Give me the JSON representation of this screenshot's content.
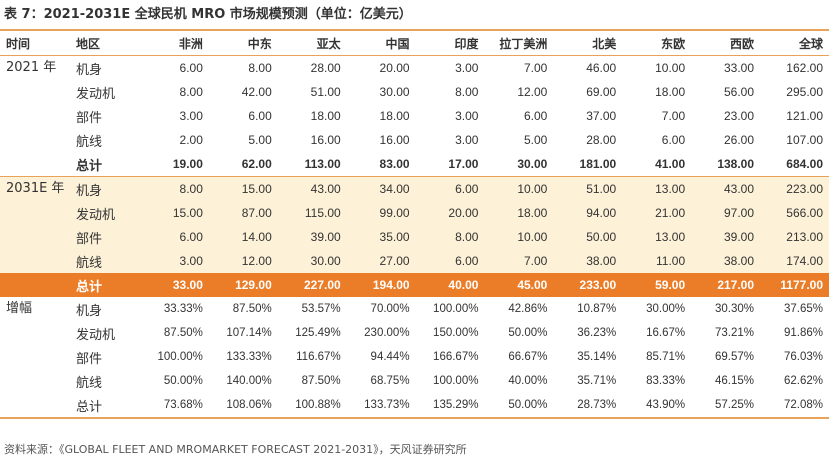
{
  "title": "表 7：2021-2031E 全球民机 MRO 市场规模预测（单位：亿美元）",
  "header": {
    "col_time": "时间",
    "col_region": "地区",
    "regions": [
      "非洲",
      "中东",
      "亚太",
      "中国",
      "印度",
      "拉丁美洲",
      "北美",
      "东欧",
      "西欧",
      "全球"
    ]
  },
  "groups": [
    {
      "label": "2021 年",
      "rows": [
        {
          "item": "机身",
          "values": [
            "6.00",
            "8.00",
            "28.00",
            "20.00",
            "3.00",
            "7.00",
            "46.00",
            "10.00",
            "33.00",
            "162.00"
          ]
        },
        {
          "item": "发动机",
          "values": [
            "8.00",
            "42.00",
            "51.00",
            "30.00",
            "8.00",
            "12.00",
            "69.00",
            "18.00",
            "56.00",
            "295.00"
          ]
        },
        {
          "item": "部件",
          "values": [
            "3.00",
            "6.00",
            "18.00",
            "18.00",
            "3.00",
            "6.00",
            "37.00",
            "7.00",
            "23.00",
            "121.00"
          ]
        },
        {
          "item": "航线",
          "values": [
            "2.00",
            "5.00",
            "16.00",
            "16.00",
            "3.00",
            "5.00",
            "28.00",
            "6.00",
            "26.00",
            "107.00"
          ]
        },
        {
          "item": "总计",
          "values": [
            "19.00",
            "62.00",
            "113.00",
            "83.00",
            "17.00",
            "30.00",
            "181.00",
            "41.00",
            "138.00",
            "684.00"
          ]
        }
      ]
    },
    {
      "label": "2031E 年",
      "rows": [
        {
          "item": "机身",
          "values": [
            "8.00",
            "15.00",
            "43.00",
            "34.00",
            "6.00",
            "10.00",
            "51.00",
            "13.00",
            "43.00",
            "223.00"
          ]
        },
        {
          "item": "发动机",
          "values": [
            "15.00",
            "87.00",
            "115.00",
            "99.00",
            "20.00",
            "18.00",
            "94.00",
            "21.00",
            "97.00",
            "566.00"
          ]
        },
        {
          "item": "部件",
          "values": [
            "6.00",
            "14.00",
            "39.00",
            "35.00",
            "8.00",
            "10.00",
            "50.00",
            "13.00",
            "39.00",
            "213.00"
          ]
        },
        {
          "item": "航线",
          "values": [
            "3.00",
            "12.00",
            "30.00",
            "27.00",
            "6.00",
            "7.00",
            "38.00",
            "11.00",
            "38.00",
            "174.00"
          ]
        },
        {
          "item": "总计",
          "values": [
            "33.00",
            "129.00",
            "227.00",
            "194.00",
            "40.00",
            "45.00",
            "233.00",
            "59.00",
            "217.00",
            "1177.00"
          ]
        }
      ]
    },
    {
      "label": "增幅",
      "rows": [
        {
          "item": "机身",
          "values": [
            "33.33%",
            "87.50%",
            "53.57%",
            "70.00%",
            "100.00%",
            "42.86%",
            "10.87%",
            "30.00%",
            "30.30%",
            "37.65%"
          ]
        },
        {
          "item": "发动机",
          "values": [
            "87.50%",
            "107.14%",
            "125.49%",
            "230.00%",
            "150.00%",
            "50.00%",
            "36.23%",
            "16.67%",
            "73.21%",
            "91.86%"
          ]
        },
        {
          "item": "部件",
          "values": [
            "100.00%",
            "133.33%",
            "116.67%",
            "94.44%",
            "166.67%",
            "66.67%",
            "35.14%",
            "85.71%",
            "69.57%",
            "76.03%"
          ]
        },
        {
          "item": "航线",
          "values": [
            "50.00%",
            "140.00%",
            "87.50%",
            "68.75%",
            "100.00%",
            "40.00%",
            "35.71%",
            "83.33%",
            "46.15%",
            "62.62%"
          ]
        },
        {
          "item": "总计",
          "values": [
            "73.68%",
            "108.06%",
            "100.88%",
            "133.73%",
            "135.29%",
            "50.00%",
            "28.73%",
            "43.90%",
            "57.25%",
            "72.08%"
          ]
        }
      ]
    }
  ],
  "source": "资料来源：《GLOBAL FLEET AND MROMARKET FORECAST 2021-2031》，天风证券研究所",
  "colors": {
    "accent": "#ec7d28",
    "band": "#fdf1d8",
    "rule": "#e8a25a"
  }
}
